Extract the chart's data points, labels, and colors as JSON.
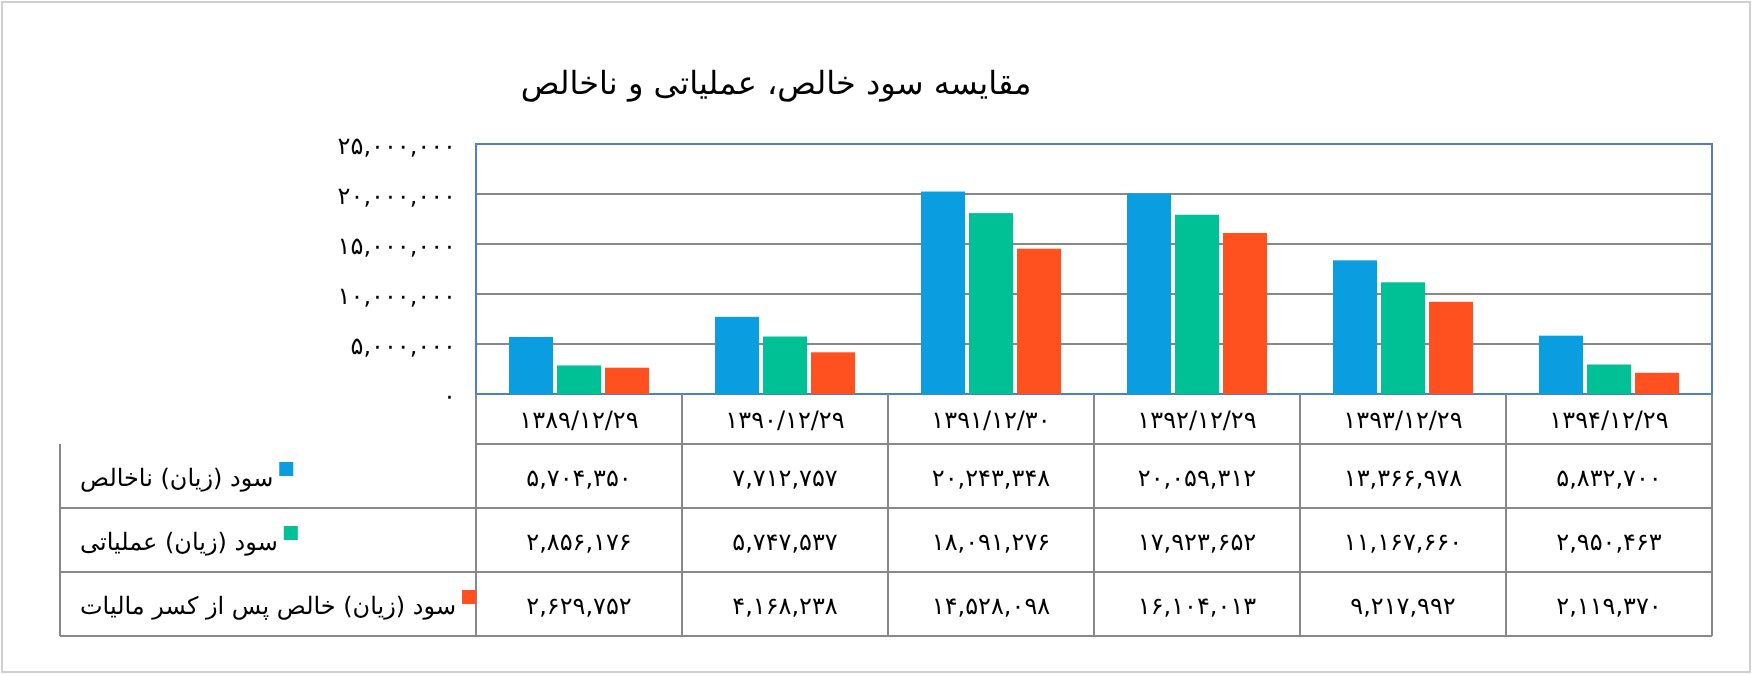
{
  "chart_data": {
    "type": "bar",
    "title": "مقایسه سود خالص، عملیاتی و ناخالص",
    "categories": [
      "۱۳۸۹/۱۲/۲۹",
      "۱۳۹۰/۱۲/۲۹",
      "۱۳۹۱/۱۲/۳۰",
      "۱۳۹۲/۱۲/۲۹",
      "۱۳۹۳/۱۲/۲۹",
      "۱۳۹۴/۱۲/۲۹"
    ],
    "series": [
      {
        "name": "سود (زیان) ناخالص",
        "color": "#0a9ee0",
        "values": [
          5704350,
          7712757,
          20243348,
          20059312,
          13366978,
          5832700
        ],
        "value_labels": [
          "۵,۷۰۴,۳۵۰",
          "۷,۷۱۲,۷۵۷",
          "۲۰,۲۴۳,۳۴۸",
          "۲۰,۰۵۹,۳۱۲",
          "۱۳,۳۶۶,۹۷۸",
          "۵,۸۳۲,۷۰۰"
        ]
      },
      {
        "name": "سود (زیان) عملیاتی",
        "color": "#00c096",
        "values": [
          2856176,
          5747537,
          18091276,
          17923652,
          11167660,
          2950463
        ],
        "value_labels": [
          "۲,۸۵۶,۱۷۶",
          "۵,۷۴۷,۵۳۷",
          "۱۸,۰۹۱,۲۷۶",
          "۱۷,۹۲۳,۶۵۲",
          "۱۱,۱۶۷,۶۶۰",
          "۲,۹۵۰,۴۶۳"
        ]
      },
      {
        "name": "سود (زیان) خالص پس از کسر مالیات",
        "color": "#ff5020",
        "values": [
          2629752,
          4168238,
          14528098,
          16104013,
          9217992,
          2119370
        ],
        "value_labels": [
          "۲,۶۲۹,۷۵۲",
          "۴,۱۶۸,۲۳۸",
          "۱۴,۵۲۸,۰۹۸",
          "۱۶,۱۰۴,۰۱۳",
          "۹,۲۱۷,۹۹۲",
          "۲,۱۱۹,۳۷۰"
        ]
      }
    ],
    "ylim": [
      0,
      25000000
    ],
    "yticks": [
      {
        "value": 0,
        "label": "۰"
      },
      {
        "value": 5000000,
        "label": "۵,۰۰۰,۰۰۰"
      },
      {
        "value": 10000000,
        "label": "۱۰,۰۰۰,۰۰۰"
      },
      {
        "value": 15000000,
        "label": "۱۵,۰۰۰,۰۰۰"
      },
      {
        "value": 20000000,
        "label": "۲۰,۰۰۰,۰۰۰"
      },
      {
        "value": 25000000,
        "label": "۲۵,۰۰۰,۰۰۰"
      }
    ],
    "grid": "y",
    "legend": "bottom"
  }
}
